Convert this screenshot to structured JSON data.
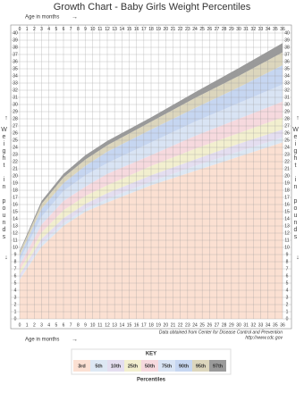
{
  "chart_data": {
    "type": "band",
    "title": "Growth Chart - Baby Girls Weight Percentiles",
    "x_label": "Age in months",
    "y_label": "Weight in pounds",
    "source": "Data obtained from Center for Disease Control and Prevention",
    "source_url": "http://www.cdc.gov",
    "legend_title": "KEY",
    "legend_caption": "Percentiles",
    "x": [
      0,
      3,
      6,
      9,
      12,
      18,
      24,
      30,
      36
    ],
    "xlim": [
      0,
      36
    ],
    "ylim": [
      0,
      40
    ],
    "xticks": [
      0,
      1,
      2,
      3,
      4,
      5,
      6,
      7,
      8,
      9,
      10,
      11,
      12,
      13,
      14,
      15,
      16,
      17,
      18,
      19,
      20,
      21,
      22,
      23,
      24,
      25,
      26,
      27,
      28,
      29,
      30,
      31,
      32,
      33,
      34,
      35,
      36
    ],
    "yticks": [
      0,
      1,
      2,
      3,
      4,
      5,
      6,
      7,
      8,
      9,
      10,
      11,
      12,
      13,
      14,
      15,
      16,
      17,
      18,
      19,
      20,
      21,
      22,
      23,
      24,
      25,
      26,
      27,
      28,
      29,
      30,
      31,
      32,
      33,
      34,
      35,
      36,
      37,
      38,
      39,
      40
    ],
    "grid": true,
    "series": [
      {
        "name": "3rd",
        "color": "#fbe0d2",
        "values": [
          5.5,
          10.1,
          13.0,
          15.0,
          16.3,
          18.7,
          20.7,
          22.7,
          24.7
        ]
      },
      {
        "name": "5th",
        "color": "#dde8f4",
        "values": [
          5.7,
          10.6,
          13.4,
          15.4,
          16.8,
          19.2,
          21.4,
          23.4,
          25.4
        ]
      },
      {
        "name": "10th",
        "color": "#e4def0",
        "values": [
          6.2,
          11.2,
          14.1,
          16.1,
          17.6,
          20.1,
          22.3,
          24.5,
          26.5
        ]
      },
      {
        "name": "25th",
        "color": "#f2efcf",
        "values": [
          6.8,
          12.1,
          15.2,
          17.2,
          18.7,
          21.4,
          23.8,
          26.0,
          28.2
        ]
      },
      {
        "name": "50th",
        "color": "#f6d9de",
        "values": [
          7.5,
          13.2,
          16.5,
          18.5,
          20.3,
          22.9,
          25.6,
          28.0,
          30.4
        ]
      },
      {
        "name": "75th",
        "color": "#d9e4f4",
        "values": [
          8.2,
          14.3,
          17.9,
          20.1,
          21.8,
          24.7,
          27.6,
          30.2,
          32.8
        ]
      },
      {
        "name": "90th",
        "color": "#c6d6f1",
        "values": [
          8.8,
          15.4,
          19.0,
          21.4,
          23.4,
          26.5,
          29.5,
          32.4,
          35.5
        ]
      },
      {
        "name": "95th",
        "color": "#dcd6bd",
        "values": [
          9.3,
          16.1,
          19.8,
          22.3,
          24.3,
          27.6,
          30.9,
          34.0,
          37.3
        ]
      },
      {
        "name": "97th",
        "color": "#9a9a9a",
        "values": [
          9.5,
          16.5,
          20.3,
          22.9,
          24.9,
          28.2,
          31.7,
          35.1,
          38.6
        ]
      }
    ]
  }
}
